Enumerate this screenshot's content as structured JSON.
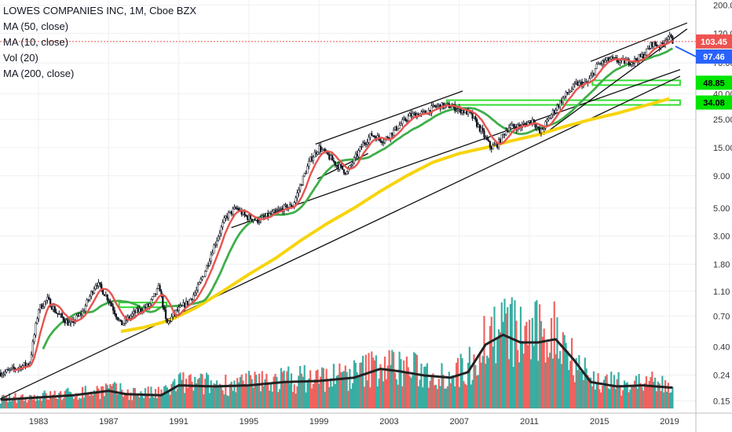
{
  "legend": {
    "title": "LOWES COMPANIES INC, 1M, Cboe BZX",
    "ma50": "MA (50, close)",
    "ma10": "MA (10, close)",
    "vol": "Vol (20)",
    "ma200": "MA (200, close)"
  },
  "colors": {
    "up": "#26a69a",
    "down": "#ef5350",
    "candle_body": "#131722",
    "ma10": "#e8534f",
    "ma50": "#3fae49",
    "ma200": "#f7d40d",
    "volume_ma": "#222222",
    "last_price_badge": "#ef5350",
    "ma10_badge": "#2962ff",
    "support_badge": "#00e600",
    "support_line": "#33dd33"
  },
  "chart_data": {
    "type": "candlestick",
    "title": "LOWES COMPANIES INC, 1M, Cboe BZX",
    "scale": "log",
    "x_ticks": [
      "1983",
      "1987",
      "1991",
      "1995",
      "1999",
      "2003",
      "2007",
      "2011",
      "2015",
      "2019"
    ],
    "y_ticks": [
      "200.00",
      "120.00",
      "70.00",
      "40.00",
      "25.00",
      "15.00",
      "9.00",
      "5.00",
      "3.00",
      "1.80",
      "1.10",
      "0.70",
      "0.40",
      "0.24",
      "0.15"
    ],
    "y_range": [
      0.12,
      220
    ],
    "x_range": [
      1980.8,
      2020.5
    ],
    "price_badges": [
      {
        "label": "103.45",
        "value": 103.45,
        "kind": "last_price"
      },
      {
        "label": "97.46",
        "value": 97.46,
        "kind": "ma10"
      },
      {
        "label": "48.85",
        "value": 48.85,
        "kind": "support"
      },
      {
        "label": "34.08",
        "value": 34.08,
        "kind": "support"
      }
    ],
    "price_anchors": [
      [
        1981.0,
        0.25
      ],
      [
        1982.0,
        0.28
      ],
      [
        1982.5,
        0.3
      ],
      [
        1983.0,
        0.8
      ],
      [
        1983.5,
        0.95
      ],
      [
        1984.0,
        0.75
      ],
      [
        1984.8,
        0.6
      ],
      [
        1985.5,
        0.75
      ],
      [
        1986.3,
        1.3
      ],
      [
        1987.0,
        0.95
      ],
      [
        1987.7,
        0.6
      ],
      [
        1988.5,
        0.75
      ],
      [
        1989.3,
        0.85
      ],
      [
        1989.9,
        1.2
      ],
      [
        1990.3,
        0.6
      ],
      [
        1990.8,
        0.75
      ],
      [
        1991.5,
        0.9
      ],
      [
        1992.0,
        1.1
      ],
      [
        1992.5,
        1.6
      ],
      [
        1993.0,
        2.5
      ],
      [
        1993.7,
        4.3
      ],
      [
        1994.3,
        5.0
      ],
      [
        1994.8,
        4.3
      ],
      [
        1995.5,
        4.0
      ],
      [
        1996.0,
        4.3
      ],
      [
        1997.0,
        5.0
      ],
      [
        1997.5,
        5.2
      ],
      [
        1998.0,
        8.0
      ],
      [
        1998.5,
        12.0
      ],
      [
        1999.0,
        15.0
      ],
      [
        1999.5,
        13.0
      ],
      [
        2000.0,
        11.0
      ],
      [
        2000.6,
        9.5
      ],
      [
        2001.5,
        16.0
      ],
      [
        2002.0,
        19.0
      ],
      [
        2002.7,
        17.0
      ],
      [
        2003.5,
        22.0
      ],
      [
        2004.2,
        27.0
      ],
      [
        2005.0,
        28.0
      ],
      [
        2005.7,
        32.0
      ],
      [
        2006.5,
        32.0
      ],
      [
        2007.0,
        30.0
      ],
      [
        2007.6,
        28.0
      ],
      [
        2008.2,
        21.0
      ],
      [
        2008.8,
        15.0
      ],
      [
        2009.2,
        16.0
      ],
      [
        2009.8,
        22.0
      ],
      [
        2010.5,
        22.0
      ],
      [
        2011.2,
        25.0
      ],
      [
        2011.6,
        19.5
      ],
      [
        2012.3,
        28.0
      ],
      [
        2013.0,
        38.0
      ],
      [
        2013.7,
        48.0
      ],
      [
        2014.3,
        48.0
      ],
      [
        2014.9,
        68.0
      ],
      [
        2015.6,
        75.0
      ],
      [
        2016.2,
        72.0
      ],
      [
        2016.9,
        72.0
      ],
      [
        2017.5,
        80.0
      ],
      [
        2018.0,
        100.0
      ],
      [
        2018.5,
        95.0
      ],
      [
        2018.9,
        115.0
      ],
      [
        2019.2,
        103.45
      ]
    ],
    "ma200_anchors": [
      [
        1987.7,
        0.53
      ],
      [
        1989.0,
        0.57
      ],
      [
        1990.5,
        0.65
      ],
      [
        1992.0,
        0.82
      ],
      [
        1993.5,
        1.1
      ],
      [
        1995.0,
        1.5
      ],
      [
        1996.5,
        2.0
      ],
      [
        1998.0,
        2.8
      ],
      [
        1999.5,
        3.8
      ],
      [
        2001.0,
        5.0
      ],
      [
        2002.5,
        6.8
      ],
      [
        2004.0,
        9.0
      ],
      [
        2005.5,
        11.5
      ],
      [
        2007.0,
        13.5
      ],
      [
        2008.5,
        15.0
      ],
      [
        2010.0,
        17.0
      ],
      [
        2011.5,
        19.0
      ],
      [
        2013.0,
        22.0
      ],
      [
        2014.5,
        25.0
      ],
      [
        2016.0,
        28.0
      ],
      [
        2017.5,
        32.0
      ],
      [
        2019.0,
        36.5
      ]
    ],
    "volume": {
      "ylim": [
        0,
        100
      ],
      "anchors": [
        [
          1981,
          8
        ],
        [
          1983,
          10
        ],
        [
          1985,
          12
        ],
        [
          1987,
          16
        ],
        [
          1988,
          13
        ],
        [
          1990,
          12
        ],
        [
          1991,
          21
        ],
        [
          1993,
          20
        ],
        [
          1995,
          21
        ],
        [
          1997,
          24
        ],
        [
          1999,
          25
        ],
        [
          2001,
          28
        ],
        [
          2002.5,
          36
        ],
        [
          2003.5,
          34
        ],
        [
          2005,
          30
        ],
        [
          2006.5,
          28
        ],
        [
          2007.5,
          33
        ],
        [
          2008.5,
          58
        ],
        [
          2009.5,
          67
        ],
        [
          2010.5,
          60
        ],
        [
          2011.5,
          60
        ],
        [
          2012.5,
          63
        ],
        [
          2013.5,
          45
        ],
        [
          2014.5,
          24
        ],
        [
          2016,
          20
        ],
        [
          2017.5,
          21
        ],
        [
          2019,
          19
        ]
      ]
    },
    "trendlines": [
      {
        "name": "long-term-support",
        "from": [
          1980.8,
          0.155
        ],
        "to": [
          2019.6,
          55.0
        ],
        "color": "#111111"
      },
      {
        "name": "secondary-support",
        "from": [
          1994.0,
          3.5
        ],
        "to": [
          2019.6,
          62.0
        ],
        "color": "#111111"
      },
      {
        "name": "1999-2007-channel-top",
        "from": [
          1998.8,
          16.0
        ],
        "to": [
          2007.2,
          42.0
        ],
        "color": "#111111"
      },
      {
        "name": "1999-2001-channel-bottom",
        "from": [
          1998.9,
          8.5
        ],
        "to": [
          2001.8,
          13.5
        ],
        "color": "#111111"
      },
      {
        "name": "2014-2019-channel-top",
        "from": [
          2014.5,
          72.0
        ],
        "to": [
          2020.0,
          145.0
        ],
        "color": "#111111"
      },
      {
        "name": "2011-2019-trendline",
        "from": [
          2011.8,
          19.0
        ],
        "to": [
          2020.0,
          130.0
        ],
        "color": "#111111"
      }
    ],
    "support_boxes": [
      {
        "name": "support-1987-1990",
        "x": [
          1987.6,
          1990.3
        ],
        "y": 0.86
      },
      {
        "name": "support-2006-2019",
        "x": [
          2006.3,
          2019.6
        ],
        "y": 34.08
      },
      {
        "name": "support-2014-2019",
        "x": [
          2014.6,
          2019.6
        ],
        "y": 48.85
      }
    ],
    "last_price_line": 103.45
  }
}
